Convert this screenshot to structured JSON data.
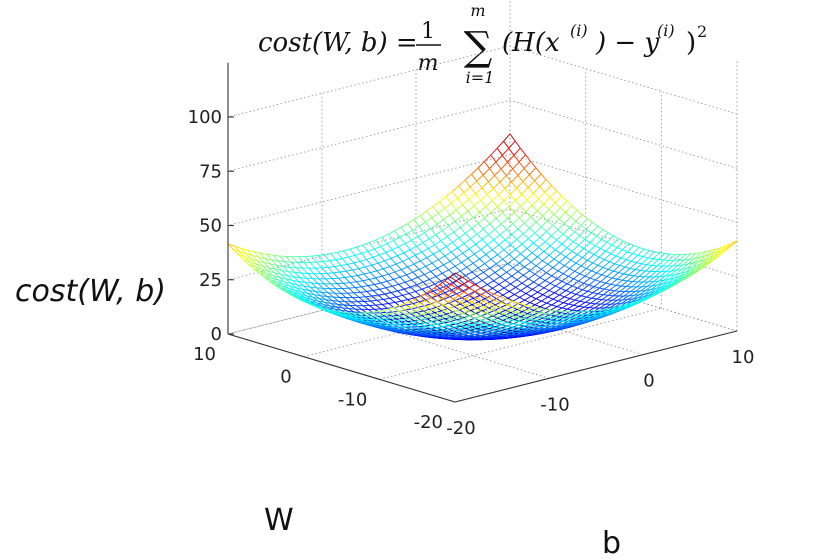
{
  "chart_data": {
    "type": "surface",
    "title": "cost(W, b) = (1/m) Σ (H(x^(i)) − y^(i))^2",
    "formula": {
      "lhs": "cost(W, b) =",
      "numerator": "1",
      "denominator": "m",
      "sigma": "∑",
      "upper": "m",
      "lower": "i=1",
      "body": "(H(x",
      "sup1": "(i)",
      "mid": ") − y",
      "sup2": "(i)",
      "close": ")",
      "power": "2"
    },
    "xlabel": "W",
    "ylabel": "b",
    "zlabel": "cost(W, b)",
    "x_ticks": [
      "10",
      "0",
      "-10",
      "-20"
    ],
    "y_ticks": [
      "-20",
      "-10",
      "0",
      "10"
    ],
    "z_ticks": [
      "0",
      "25",
      "50",
      "75",
      "100"
    ],
    "xlim": [
      -20,
      10
    ],
    "ylim": [
      -20,
      10
    ],
    "zlim": [
      0,
      100
    ],
    "grid": true,
    "colormap": "jet",
    "surface": "bowl (paraboloid) with minimum near W=-5, b=-5"
  }
}
